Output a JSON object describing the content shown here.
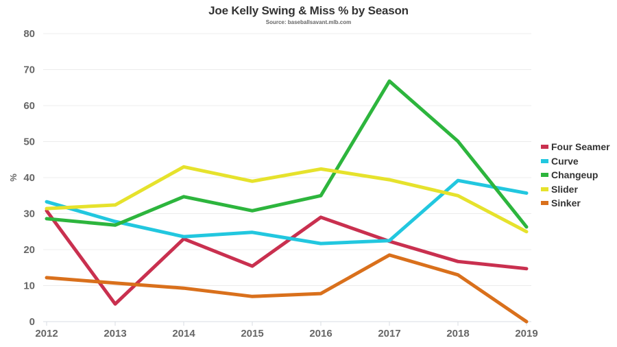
{
  "chart_data": {
    "type": "line",
    "title": "Joe Kelly Swing & Miss % by Season",
    "subtitle": "Source: baseballsavant.mlb.com",
    "xlabel": "",
    "ylabel": "%",
    "x": [
      "2012",
      "2013",
      "2014",
      "2015",
      "2016",
      "2017",
      "2018",
      "2019"
    ],
    "ylim": [
      0,
      80
    ],
    "yticks": [
      "0",
      "10",
      "20",
      "30",
      "40",
      "50",
      "60",
      "70",
      "80"
    ],
    "grid": true,
    "legend_position": "right",
    "series": [
      {
        "name": "Four Seamer",
        "color": "#c9304f",
        "values": [
          30.8,
          4.9,
          23.0,
          15.4,
          29.0,
          22.3,
          16.7,
          14.7
        ]
      },
      {
        "name": "Curve",
        "color": "#22c7df",
        "values": [
          33.3,
          27.8,
          23.6,
          24.8,
          21.7,
          22.5,
          39.2,
          35.7
        ]
      },
      {
        "name": "Changeup",
        "color": "#2db53d",
        "values": [
          28.6,
          26.8,
          34.7,
          30.8,
          35.0,
          66.8,
          50.1,
          26.3
        ]
      },
      {
        "name": "Slider",
        "color": "#e6e22c",
        "values": [
          31.4,
          32.4,
          43.0,
          39.0,
          42.4,
          39.4,
          35.0,
          25.0
        ]
      },
      {
        "name": "Sinker",
        "color": "#d9701c",
        "values": [
          12.2,
          10.7,
          9.3,
          7.0,
          7.8,
          18.5,
          13.0,
          0.0
        ]
      }
    ]
  }
}
